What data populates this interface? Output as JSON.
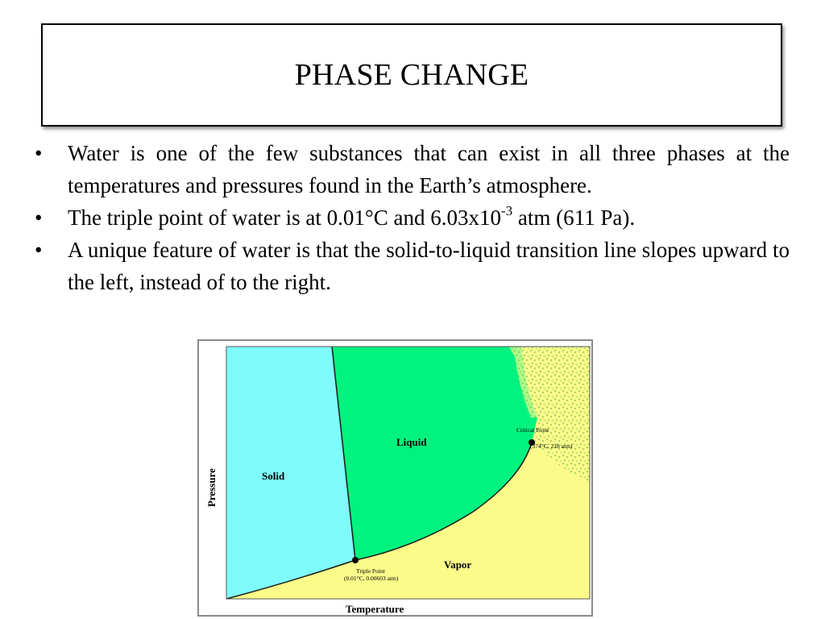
{
  "slide": {
    "title": "PHASE CHANGE",
    "bullet_glyph": "•",
    "bullets": [
      "Water is one of the few substances that can exist in all three phases at the temperatures and pressures found in the Earth’s atmosphere.",
      "The triple point of water is at 0.01°C and 6.03x10",
      "A unique feature of water is that the solid-to-liquid transition line slopes upward to the left, instead of to the right."
    ],
    "bullet2_exponent": "-3",
    "bullet2_tail": " atm (611 Pa)."
  },
  "diagram": {
    "regions": {
      "solid": "Solid",
      "liquid": "Liquid",
      "vapor": "Vapor"
    },
    "axes": {
      "x": "Temperature",
      "y": "Pressure"
    },
    "triple_point": {
      "label": "Triple Point",
      "value": "(0.01°C, 0.00603 atm)"
    },
    "critical_point": {
      "label": "Critical Point",
      "value": "(374°C, 218 atm)"
    },
    "colors": {
      "solid": "#7ffbfb",
      "liquid": "#00f37f",
      "vapor": "#fbfb8a",
      "supercritical_speckle": "#a8d868",
      "frame": "#8a8a8a"
    }
  }
}
